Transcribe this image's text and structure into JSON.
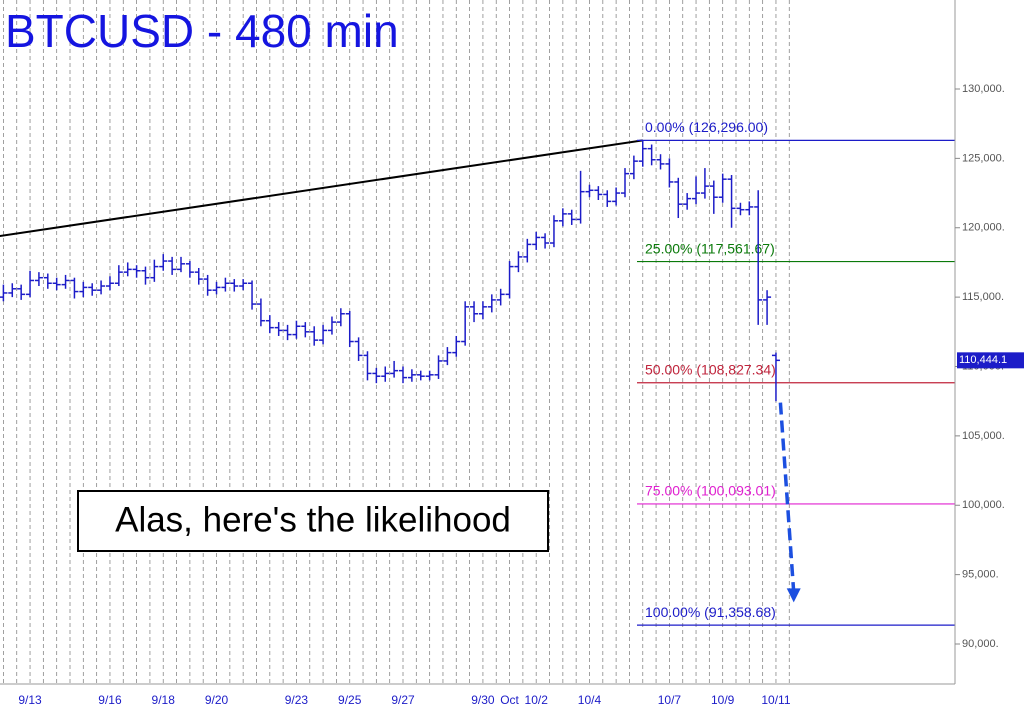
{
  "chart_data": {
    "type": "ohlc",
    "title": "BTCUSD - 480 min",
    "color": "#1c1cc8",
    "annotation": "Alas, here's the likelihood",
    "categories": [
      null,
      null,
      null,
      "9/13",
      null,
      null,
      null,
      null,
      null,
      null,
      null,
      null,
      "9/16",
      null,
      null,
      null,
      null,
      null,
      "9/18",
      null,
      null,
      null,
      null,
      null,
      "9/20",
      null,
      null,
      null,
      null,
      null,
      null,
      null,
      null,
      "9/23",
      null,
      null,
      null,
      null,
      null,
      "9/25",
      null,
      null,
      null,
      null,
      null,
      "9/27",
      null,
      null,
      null,
      null,
      null,
      null,
      null,
      null,
      "9/30",
      null,
      null,
      "Oct",
      null,
      null,
      "10/2",
      null,
      null,
      null,
      null,
      null,
      "10/4",
      null,
      null,
      null,
      null,
      null,
      null,
      null,
      null,
      "10/7",
      null,
      null,
      null,
      null,
      null,
      "10/9",
      null,
      null,
      null,
      null,
      null,
      "10/11"
    ],
    "ohlc": [
      [
        115000,
        115900,
        114700,
        115300
      ],
      [
        115300,
        116000,
        115000,
        115600
      ],
      [
        115600,
        115900,
        114800,
        115200
      ],
      [
        115200,
        116900,
        115000,
        116200
      ],
      [
        116200,
        116800,
        115800,
        116400
      ],
      [
        116400,
        116700,
        115600,
        116000
      ],
      [
        116000,
        116400,
        115500,
        115900
      ],
      [
        115900,
        116600,
        115600,
        116200
      ],
      [
        116200,
        116400,
        114900,
        115400
      ],
      [
        115400,
        116100,
        115000,
        115700
      ],
      [
        115700,
        116000,
        115100,
        115500
      ],
      [
        115500,
        116200,
        115200,
        115800
      ],
      [
        115800,
        116500,
        115500,
        116000
      ],
      [
        116000,
        117300,
        115800,
        116800
      ],
      [
        116800,
        117500,
        116500,
        117000
      ],
      [
        117000,
        117300,
        116400,
        116900
      ],
      [
        116900,
        117200,
        115900,
        116400
      ],
      [
        116400,
        117700,
        116100,
        117200
      ],
      [
        117200,
        118100,
        116900,
        117600
      ],
      [
        117600,
        117900,
        116600,
        117000
      ],
      [
        117000,
        117900,
        116800,
        117400
      ],
      [
        117400,
        117600,
        116400,
        116800
      ],
      [
        116800,
        117100,
        115900,
        116300
      ],
      [
        116300,
        116600,
        115100,
        115500
      ],
      [
        115500,
        116100,
        115200,
        115700
      ],
      [
        115700,
        116400,
        115400,
        116000
      ],
      [
        116000,
        116300,
        115400,
        115800
      ],
      [
        115800,
        116300,
        115500,
        116000
      ],
      [
        116000,
        116200,
        114100,
        114500
      ],
      [
        114500,
        114900,
        112900,
        113300
      ],
      [
        113300,
        113700,
        112400,
        112800
      ],
      [
        112800,
        113200,
        112200,
        112600
      ],
      [
        112600,
        113000,
        111900,
        112300
      ],
      [
        112300,
        113300,
        112000,
        112900
      ],
      [
        112900,
        113200,
        112100,
        112500
      ],
      [
        112500,
        112900,
        111500,
        111900
      ],
      [
        111900,
        113000,
        111600,
        112600
      ],
      [
        112600,
        113600,
        112300,
        113200
      ],
      [
        113200,
        114200,
        112900,
        113800
      ],
      [
        113800,
        114000,
        111400,
        111800
      ],
      [
        111800,
        112100,
        110400,
        110800
      ],
      [
        110800,
        111100,
        109000,
        109500
      ],
      [
        109500,
        109900,
        108800,
        109300
      ],
      [
        109300,
        110000,
        108900,
        109500
      ],
      [
        109500,
        110400,
        109200,
        109700
      ],
      [
        109700,
        110000,
        108800,
        109200
      ],
      [
        109200,
        109800,
        108900,
        109400
      ],
      [
        109400,
        109700,
        109000,
        109300
      ],
      [
        109300,
        109700,
        109000,
        109400
      ],
      [
        109400,
        110800,
        109100,
        110400
      ],
      [
        110400,
        111400,
        110100,
        111000
      ],
      [
        111000,
        112200,
        110700,
        111800
      ],
      [
        111800,
        114700,
        111500,
        114300
      ],
      [
        114300,
        114700,
        113200,
        113800
      ],
      [
        113800,
        114700,
        113400,
        114300
      ],
      [
        114300,
        115200,
        113900,
        114800
      ],
      [
        114800,
        115600,
        114400,
        115200
      ],
      [
        115200,
        117600,
        114900,
        117200
      ],
      [
        117200,
        118300,
        116800,
        117900
      ],
      [
        117900,
        119200,
        117500,
        118800
      ],
      [
        118800,
        119700,
        118400,
        119300
      ],
      [
        119300,
        119600,
        118500,
        118900
      ],
      [
        118900,
        120900,
        118600,
        120500
      ],
      [
        120500,
        121400,
        120100,
        121000
      ],
      [
        121000,
        121300,
        120200,
        120600
      ],
      [
        120600,
        124100,
        120300,
        122600
      ],
      [
        122600,
        123100,
        122200,
        122700
      ],
      [
        122700,
        123000,
        122000,
        122400
      ],
      [
        122400,
        122700,
        121500,
        121900
      ],
      [
        121900,
        122900,
        121600,
        122500
      ],
      [
        122500,
        124300,
        122200,
        123900
      ],
      [
        123900,
        125200,
        123500,
        124800
      ],
      [
        124800,
        126296,
        124400,
        125700
      ],
      [
        125700,
        126000,
        124500,
        124900
      ],
      [
        124900,
        125300,
        124200,
        124600
      ],
      [
        124600,
        125000,
        122900,
        123300
      ],
      [
        123300,
        123600,
        120700,
        121700
      ],
      [
        121700,
        122500,
        121300,
        122100
      ],
      [
        122100,
        123700,
        121700,
        122500
      ],
      [
        122500,
        124300,
        122100,
        123000
      ],
      [
        123000,
        123400,
        121000,
        122200
      ],
      [
        122200,
        123900,
        121800,
        123500
      ],
      [
        123500,
        123800,
        120000,
        121400
      ],
      [
        121400,
        121800,
        120900,
        121300
      ],
      [
        121300,
        121900,
        120900,
        121500
      ],
      [
        121500,
        122700,
        113000,
        114800
      ],
      [
        114800,
        115500,
        113000,
        115000
      ],
      [
        110800,
        111000,
        107500,
        110444
      ]
    ],
    "trendline": {
      "x": [
        0,
        72
      ],
      "values": [
        119400,
        126296
      ]
    },
    "projection": {
      "x": [
        87.5,
        89
      ],
      "values": [
        107400,
        93000
      ]
    },
    "fib_levels": [
      {
        "value": 126296,
        "label": "0.00% (126,296.00)",
        "color": "#1c1cc8"
      },
      {
        "value": 117561.67,
        "label": "25.00% (117,561.67)",
        "color": "#0a7a0a"
      },
      {
        "value": 108827.34,
        "label": "50.00% (108,827.34)",
        "color": "#c0243c"
      },
      {
        "value": 100093.01,
        "label": "75.00% (100,093.01)",
        "color": "#e020d0"
      },
      {
        "value": 91358.68,
        "label": "100.00% (91,358.68)",
        "color": "#1c1cc8"
      }
    ],
    "last_price": {
      "value": 110444.1,
      "label": "110,444.1"
    },
    "ylim": [
      87117,
      136414
    ],
    "yticks": [
      {
        "value": 90000,
        "label": "90,000."
      },
      {
        "value": 95000,
        "label": "95,000."
      },
      {
        "value": 100000,
        "label": "100,000."
      },
      {
        "value": 105000,
        "label": "105,000."
      },
      {
        "value": 110000,
        "label": "110,000."
      },
      {
        "value": 115000,
        "label": "115,000."
      },
      {
        "value": 120000,
        "label": "120,000."
      },
      {
        "value": 125000,
        "label": "125,000."
      },
      {
        "value": 130000,
        "label": "130,000."
      }
    ],
    "grid": true
  }
}
